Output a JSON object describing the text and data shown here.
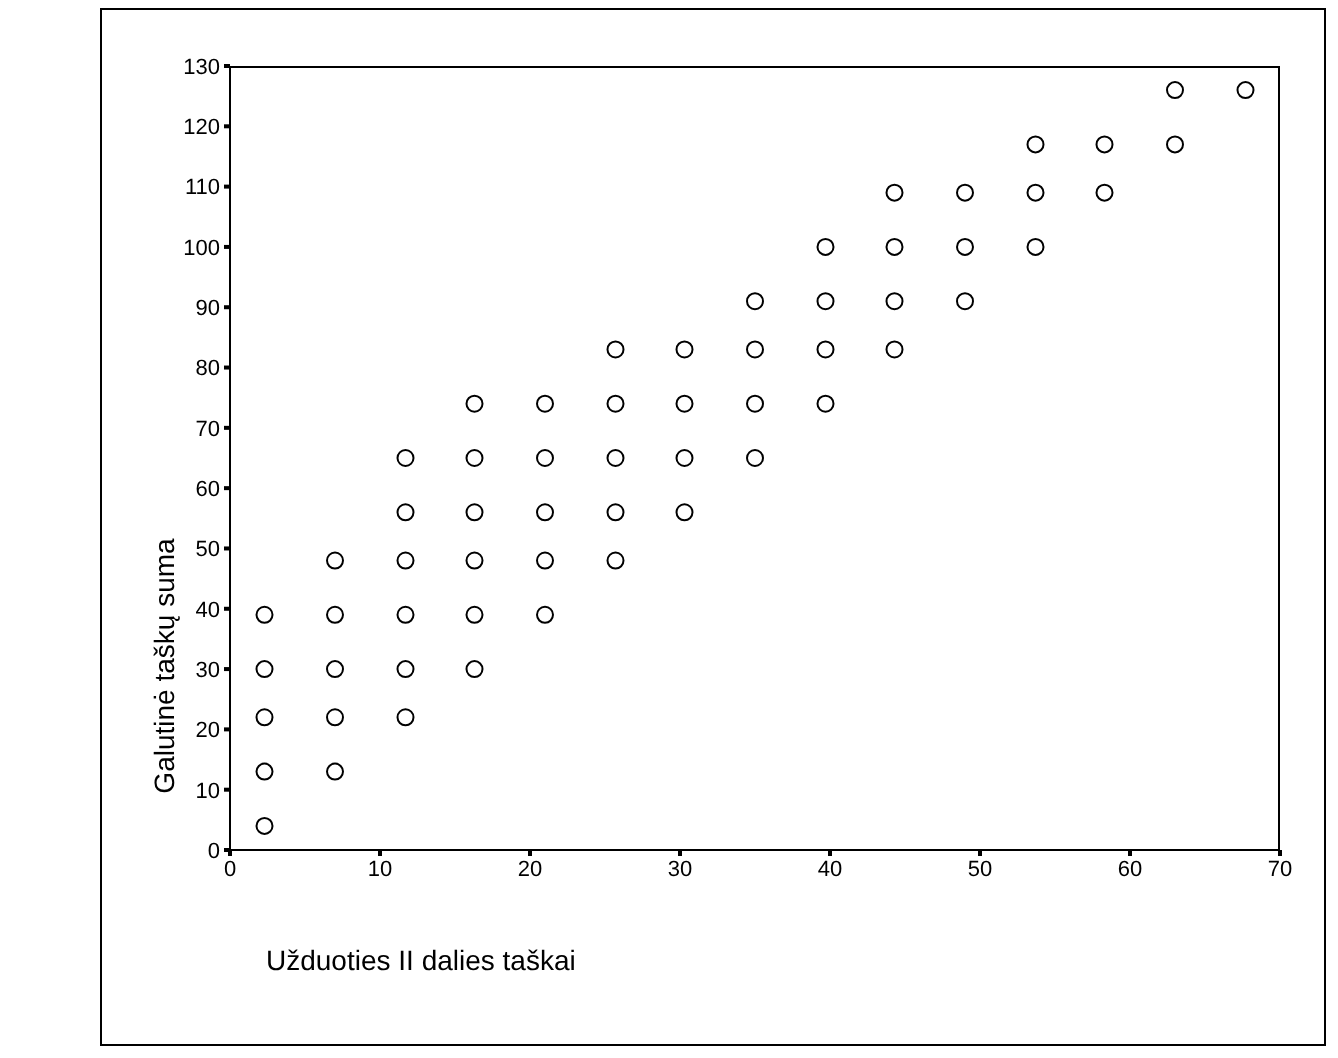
{
  "chart_data": {
    "type": "scatter",
    "xlabel": "Užduoties II dalies taškai",
    "ylabel": "Galutinė taškų suma",
    "xlim": [
      0,
      70
    ],
    "xticks": [
      0,
      10,
      20,
      30,
      40,
      50,
      60,
      70
    ],
    "ylim": [
      0,
      130
    ],
    "yticks": [
      0,
      10,
      20,
      30,
      40,
      50,
      60,
      70,
      80,
      90,
      100,
      110,
      120,
      130
    ],
    "marker": "circle",
    "series": [
      {
        "color": "#000000",
        "x": [
          2.3,
          2.3,
          2.3,
          2.3,
          2.3,
          7,
          7,
          7,
          7,
          7,
          11.7,
          11.7,
          11.7,
          11.7,
          11.7,
          11.7,
          16.3,
          16.3,
          16.3,
          16.3,
          16.3,
          16.3,
          21,
          21,
          21,
          21,
          21,
          25.7,
          25.7,
          25.7,
          25.7,
          25.7,
          30.3,
          30.3,
          30.3,
          30.3,
          35,
          35,
          35,
          35,
          39.7,
          39.7,
          39.7,
          39.7,
          44.3,
          44.3,
          44.3,
          44.3,
          49,
          49,
          49,
          53.7,
          53.7,
          53.7,
          58.3,
          58.3,
          63,
          63,
          67.7
        ],
        "values": [
          4,
          13,
          22,
          30,
          39,
          13,
          22,
          30,
          39,
          48,
          22,
          30,
          39,
          48,
          56,
          65,
          30,
          39,
          48,
          56,
          65,
          74,
          39,
          48,
          56,
          65,
          74,
          48,
          56,
          65,
          74,
          83,
          56,
          65,
          74,
          83,
          65,
          74,
          83,
          91,
          74,
          83,
          91,
          100,
          83,
          91,
          100,
          109,
          91,
          100,
          109,
          100,
          109,
          117,
          109,
          117,
          117,
          126,
          126
        ]
      }
    ]
  }
}
